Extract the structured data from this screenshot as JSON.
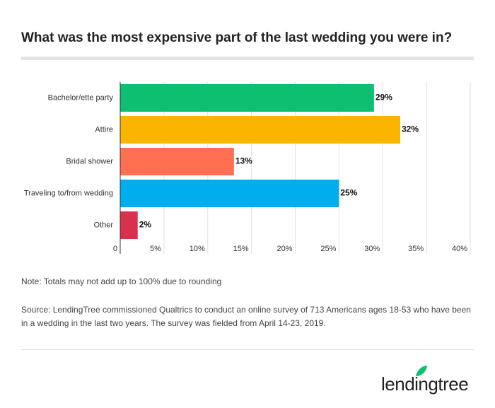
{
  "chart_data": {
    "type": "hbar",
    "title": "What was the most expensive part of the last wedding you were in?",
    "categories": [
      "Bachelor/ette party",
      "Attire",
      "Bridal shower",
      "Traveling to/from wedding",
      "Other"
    ],
    "values": [
      29,
      32,
      13,
      25,
      2
    ],
    "value_labels": [
      "29%",
      "32%",
      "13%",
      "25%",
      "2%"
    ],
    "colors": [
      "#0dbf71",
      "#fbb400",
      "#ff7052",
      "#00aeef",
      "#d9304e"
    ],
    "xlim": [
      0,
      40
    ],
    "xticks": [
      0,
      {
        "value": 5,
        "label": "5%"
      },
      {
        "value": 10,
        "label": "10%"
      },
      {
        "value": 15,
        "label": "15%"
      },
      {
        "value": 20,
        "label": "20%"
      },
      {
        "value": 25,
        "label": "25%"
      },
      {
        "value": 30,
        "label": "30%"
      },
      {
        "value": 35,
        "label": "35%"
      },
      {
        "value": 40,
        "label": "40%"
      }
    ],
    "grid": true,
    "note": "Note: Totals may not add up to 100% due to rounding",
    "source": "Source: LendingTree commissioned Qualtrics to conduct an online survey of 713 Americans ages 18-53 who have been in a wedding in the last two years. The survey was fielded from April 14-23, 2019.",
    "logo": "lendingtree"
  }
}
